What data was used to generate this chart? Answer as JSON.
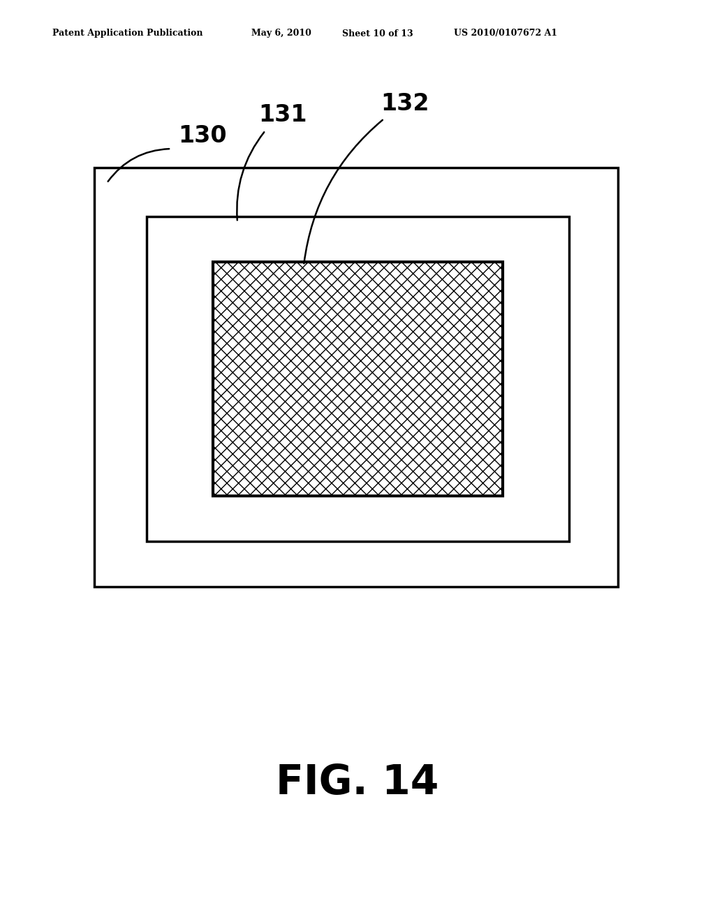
{
  "background_color": "#ffffff",
  "header_text": "Patent Application Publication",
  "header_date": "May 6, 2010",
  "header_sheet": "Sheet 10 of 13",
  "header_patent": "US 2010/0107672 A1",
  "figure_label": "FIG. 14",
  "label_130": "130",
  "label_131": "131",
  "label_132": "132",
  "line_color": "#000000",
  "line_width": 2.5,
  "hatch_pattern": "xx",
  "hatch_fill": "#ffffff"
}
